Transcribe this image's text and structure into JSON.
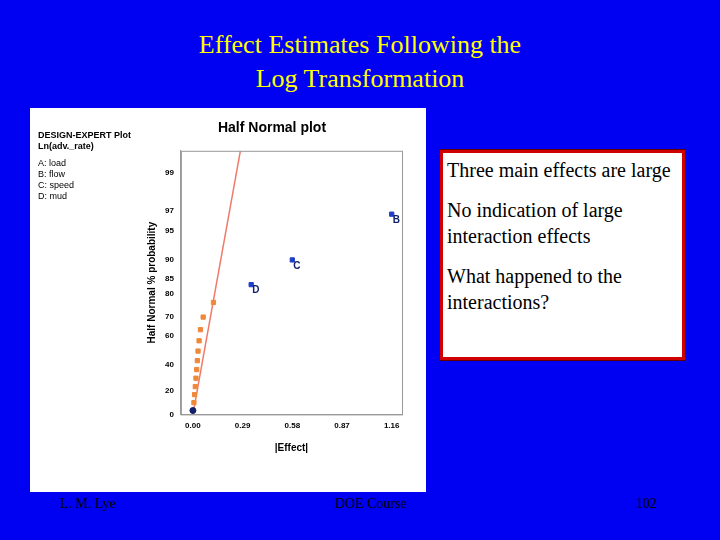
{
  "slide": {
    "title": [
      "Effect Estimates Following the",
      "Log Transformation"
    ],
    "callout": [
      "Three main effects are large",
      "No indication of large interaction effects",
      "What happened to the interactions?"
    ],
    "footer": [
      "L. M. Lye",
      "DOE Course",
      "102"
    ]
  },
  "chart_data": {
    "type": "scatter",
    "title": "Half Normal plot",
    "subtitle": [
      "DESIGN-EXPERT Plot",
      "Ln(adv._rate)"
    ],
    "factor_labels": [
      "A: load",
      "B: flow",
      "C: speed",
      "D: mud"
    ],
    "x_label": "|Effect|",
    "y_label": "Half Normal % probability",
    "xlim": [
      -0.07,
      1.22
    ],
    "xticks": [
      {
        "value": 0,
        "label": "0.00"
      },
      {
        "value": 0.29,
        "label": "0.29"
      },
      {
        "value": 0.58,
        "label": "0.58"
      },
      {
        "value": 0.87,
        "label": "0.87"
      },
      {
        "value": 1.16,
        "label": "1.16"
      }
    ],
    "ylim": [
      0,
      99.5
    ],
    "yticks": [
      0,
      20,
      40,
      60,
      70,
      80,
      85,
      90,
      95,
      97,
      99
    ],
    "grid": false,
    "series": [
      {
        "color": "#f0883a",
        "marker": "square",
        "x": [
          0.006,
          0.01,
          0.014,
          0.018,
          0.022,
          0.026,
          0.03,
          0.036,
          0.044,
          0.06,
          0.12
        ],
        "values": [
          10,
          16.7,
          23.3,
          30,
          36.7,
          43.3,
          50,
          56.7,
          63.3,
          70,
          76.7
        ]
      },
      {
        "color": "#10206a",
        "marker": "circle",
        "x": [
          0
        ],
        "values": [
          3.3
        ]
      },
      {
        "color": "#1f3fc8",
        "marker": "square",
        "x": [
          0.34,
          0.58,
          1.16
        ],
        "values": [
          83.3,
          90,
          96.7
        ]
      },
      {
        "type": "line",
        "color": "#f07a6a",
        "line_style": "solid",
        "x": [
          0,
          0.277
        ],
        "values": [
          0,
          99.5
        ]
      }
    ],
    "annotations": [
      {
        "text": "D",
        "x": 0.34,
        "y": 83.3
      },
      {
        "text": "C",
        "x": 0.58,
        "y": 90
      },
      {
        "text": "B",
        "x": 1.16,
        "y": 96.7
      }
    ]
  }
}
